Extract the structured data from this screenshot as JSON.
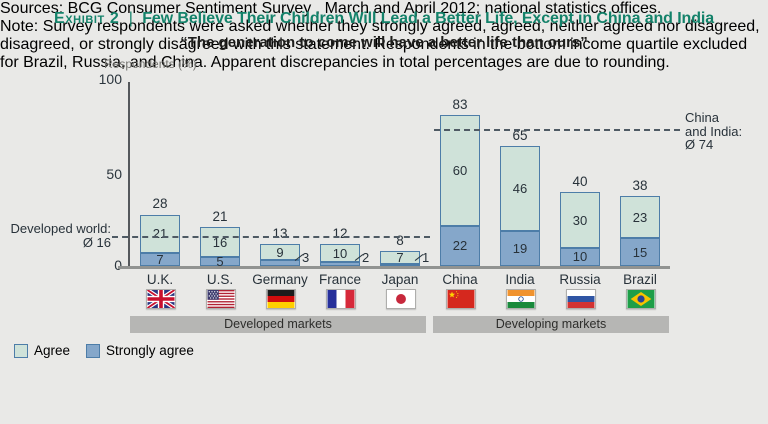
{
  "header": {
    "exhibit_label": "Exhibit 2",
    "divider": "|",
    "title": "Few Believe Their Children Will Lead a Better Life, Except in China and India",
    "subtitle": "“The generation to come will have a better life than ours”"
  },
  "chart_data": {
    "type": "bar",
    "stacked": true,
    "title": "Few Believe Their Children Will Lead a Better Life, Except in China and India",
    "subtitle": "“The generation to come will have a better life than ours”",
    "ylabel": "Respondents (%)",
    "ylim": [
      0,
      100
    ],
    "ytick_labels": [
      "100",
      "50",
      "0"
    ],
    "grid": false,
    "categories": [
      "U.K.",
      "U.S.",
      "Germany",
      "France",
      "Japan",
      "China",
      "India",
      "Russia",
      "Brazil"
    ],
    "flags": [
      "uk-flag",
      "us-flag",
      "germany-flag",
      "france-flag",
      "japan-flag",
      "china-flag",
      "india-flag",
      "russia-flag",
      "brazil-flag"
    ],
    "series": [
      {
        "name": "Agree",
        "color": "#cfe2d9",
        "values": [
          21,
          16,
          9,
          10,
          7,
          60,
          46,
          30,
          23
        ]
      },
      {
        "name": "Strongly agree",
        "color": "#85a7ca",
        "values": [
          7,
          5,
          3,
          2,
          1,
          22,
          19,
          10,
          15
        ]
      }
    ],
    "totals": [
      28,
      21,
      13,
      12,
      8,
      83,
      65,
      40,
      38
    ],
    "reference_lines": [
      {
        "value": 16,
        "label_lines": [
          "Developed world:",
          "Ø 16"
        ]
      },
      {
        "value": 74,
        "label_lines": [
          "China",
          "and India:",
          "Ø 74"
        ]
      }
    ],
    "groups": [
      {
        "label": "Developed markets",
        "categories": [
          "U.K.",
          "U.S.",
          "Germany",
          "France",
          "Japan"
        ]
      },
      {
        "label": "Developing markets",
        "categories": [
          "China",
          "India",
          "Russia",
          "Brazil"
        ]
      }
    ],
    "legend_position": "bottom-left"
  },
  "legend": {
    "items": [
      {
        "label": "Agree",
        "color": "#cfe2d9"
      },
      {
        "label": "Strongly agree",
        "color": "#85a7ca"
      }
    ]
  },
  "footer": {
    "sources_label": "Sources:",
    "sources": "BCG Consumer Sentiment Survey , March and April 2012; national statistics offices.",
    "note_label": "Note:",
    "note": "Survey respondents were asked whether they strongly agreed, agreed, neither agreed nor disagreed, disagreed, or strongly disagreed with this statement. Respondents in the bottom income quartile excluded for Brazil, Russia, and China. Apparent discrepancies in total percentages are due to rounding."
  }
}
